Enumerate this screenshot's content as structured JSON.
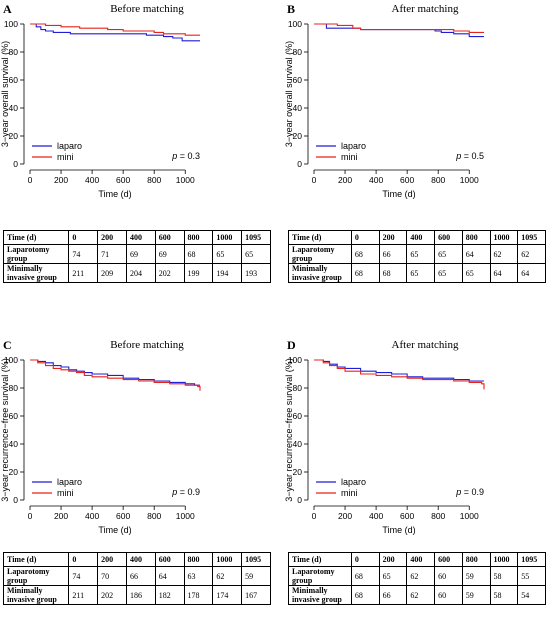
{
  "panels": [
    {
      "letter": "A",
      "title": "Before matching",
      "chart_data": {
        "type": "line",
        "ylabel": "3−year overall survival (%)",
        "xlabel": "Time (d)",
        "xlim": [
          0,
          1095
        ],
        "ylim": [
          0,
          100
        ],
        "xticks": [
          0,
          200,
          400,
          600,
          800,
          1000
        ],
        "yticks": [
          0,
          20,
          40,
          60,
          80,
          100
        ],
        "legend": "bottom-left",
        "p_label": "p",
        "p_value": "= 0.3",
        "series": [
          {
            "name": "laparo",
            "color": "#1f1fd8",
            "x": [
              0,
              40,
              70,
              100,
              150,
              260,
              350,
              500,
              650,
              750,
              800,
              860,
              920,
              980,
              1095
            ],
            "y": [
              100,
              98,
              96,
              95,
              94,
              93,
              93,
              93,
              93,
              92,
              92,
              91,
              90,
              88,
              88
            ]
          },
          {
            "name": "mini",
            "color": "#e8231a",
            "x": [
              0,
              100,
              150,
              200,
              260,
              320,
              400,
              500,
              600,
              700,
              800,
              860,
              920,
              1000,
              1095
            ],
            "y": [
              100,
              99,
              99,
              98,
              98,
              97,
              97,
              96,
              95,
              95,
              94,
              93,
              93,
              92,
              92
            ]
          }
        ]
      },
      "table": {
        "header": [
          "Time (d)",
          "0",
          "200",
          "400",
          "600",
          "800",
          "1000",
          "1095"
        ],
        "rows": [
          {
            "label": "Laparotomy group",
            "values": [
              "74",
              "71",
              "69",
              "69",
              "68",
              "65",
              "65"
            ]
          },
          {
            "label": "Minimally invasive group",
            "values": [
              "211",
              "209",
              "204",
              "202",
              "199",
              "194",
              "193"
            ]
          }
        ]
      }
    },
    {
      "letter": "B",
      "title": "After matching",
      "chart_data": {
        "type": "line",
        "ylabel": "3−year overall survival (%)",
        "xlabel": "Time (d)",
        "xlim": [
          0,
          1095
        ],
        "ylim": [
          0,
          100
        ],
        "xticks": [
          0,
          200,
          400,
          600,
          800,
          1000
        ],
        "yticks": [
          0,
          20,
          40,
          60,
          80,
          100
        ],
        "legend": "bottom-left",
        "p_label": "p",
        "p_value": "= 0.5",
        "series": [
          {
            "name": "laparo",
            "color": "#1f1fd8",
            "x": [
              0,
              80,
              150,
              250,
              300,
              400,
              600,
              780,
              820,
              900,
              1000,
              1095
            ],
            "y": [
              100,
              97,
              97,
              97,
              96,
              96,
              96,
              95,
              94,
              93,
              91,
              91
            ]
          },
          {
            "name": "mini",
            "color": "#e8231a",
            "x": [
              0,
              150,
              250,
              300,
              600,
              800,
              900,
              1000,
              1095
            ],
            "y": [
              100,
              99,
              97,
              96,
              96,
              96,
              95,
              94,
              94
            ]
          }
        ]
      },
      "table": {
        "header": [
          "Time (d)",
          "0",
          "200",
          "400",
          "600",
          "800",
          "1000",
          "1095"
        ],
        "rows": [
          {
            "label": "Laparotomy group",
            "values": [
              "68",
              "66",
              "65",
              "65",
              "64",
              "62",
              "62"
            ]
          },
          {
            "label": "Minimally invasive group",
            "values": [
              "68",
              "68",
              "65",
              "65",
              "65",
              "64",
              "64"
            ]
          }
        ]
      }
    },
    {
      "letter": "C",
      "title": "Before matching",
      "chart_data": {
        "type": "line",
        "ylabel": "3−year recurrence−free survival (%)",
        "xlabel": "Time (d)",
        "xlim": [
          0,
          1095
        ],
        "ylim": [
          0,
          100
        ],
        "xticks": [
          0,
          200,
          400,
          600,
          800,
          1000
        ],
        "yticks": [
          0,
          20,
          40,
          60,
          80,
          100
        ],
        "legend": "bottom-left",
        "p_label": "p",
        "p_value": "= 0.9",
        "series": [
          {
            "name": "laparo",
            "color": "#1f1fd8",
            "x": [
              0,
              50,
              100,
              150,
              200,
              250,
              300,
              350,
              400,
              500,
              600,
              700,
              800,
              900,
              1000,
              1060,
              1095
            ],
            "y": [
              100,
              99,
              98,
              96,
              95,
              93,
              92,
              91,
              90,
              89,
              87,
              86,
              85,
              84,
              83,
              82,
              82
            ]
          },
          {
            "name": "mini",
            "color": "#e8231a",
            "x": [
              0,
              50,
              100,
              150,
              200,
              250,
              300,
              350,
              400,
              500,
              600,
              700,
              800,
              900,
              1000,
              1080,
              1095
            ],
            "y": [
              100,
              98,
              96,
              94,
              93,
              92,
              91,
              89,
              88,
              87,
              86,
              85,
              84,
              83,
              82,
              81,
              78
            ]
          }
        ]
      },
      "table": {
        "header": [
          "Time (d)",
          "0",
          "200",
          "400",
          "600",
          "800",
          "1000",
          "1095"
        ],
        "rows": [
          {
            "label": "Laparotomy group",
            "values": [
              "74",
              "70",
              "66",
              "64",
              "63",
              "62",
              "59"
            ]
          },
          {
            "label": "Minimally invasive group",
            "values": [
              "211",
              "202",
              "186",
              "182",
              "178",
              "174",
              "167"
            ]
          }
        ]
      }
    },
    {
      "letter": "D",
      "title": "After matching",
      "chart_data": {
        "type": "line",
        "ylabel": "3−year recurrence−free survival (%)",
        "xlabel": "Time (d)",
        "xlim": [
          0,
          1095
        ],
        "ylim": [
          0,
          100
        ],
        "xticks": [
          0,
          200,
          400,
          600,
          800,
          1000
        ],
        "yticks": [
          0,
          20,
          40,
          60,
          80,
          100
        ],
        "legend": "bottom-left",
        "p_label": "p",
        "p_value": "= 0.9",
        "series": [
          {
            "name": "laparo",
            "color": "#1f1fd8",
            "x": [
              0,
              60,
              100,
              150,
              200,
              300,
              400,
              500,
              600,
              700,
              800,
              900,
              1000,
              1095
            ],
            "y": [
              100,
              99,
              97,
              95,
              94,
              92,
              91,
              90,
              88,
              87,
              87,
              86,
              85,
              85
            ]
          },
          {
            "name": "mini",
            "color": "#e8231a",
            "x": [
              0,
              60,
              100,
              150,
              200,
              300,
              400,
              500,
              600,
              700,
              800,
              900,
              1000,
              1080,
              1095
            ],
            "y": [
              100,
              98,
              96,
              94,
              92,
              90,
              89,
              88,
              87,
              86,
              86,
              85,
              84,
              83,
              79
            ]
          }
        ]
      },
      "table": {
        "header": [
          "Time (d)",
          "0",
          "200",
          "400",
          "600",
          "800",
          "1000",
          "1095"
        ],
        "rows": [
          {
            "label": "Laparotomy group",
            "values": [
              "68",
              "65",
              "62",
              "60",
              "59",
              "58",
              "55"
            ]
          },
          {
            "label": "Minimally invasive group",
            "values": [
              "68",
              "66",
              "62",
              "60",
              "59",
              "58",
              "54"
            ]
          }
        ]
      }
    }
  ]
}
